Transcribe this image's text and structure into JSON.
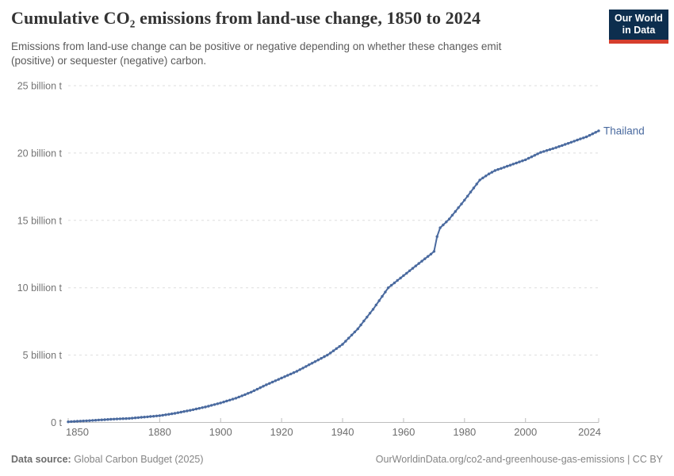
{
  "header": {
    "title": "Cumulative CO₂ emissions from land-use change, 1850 to 2024",
    "subtitle_lines": {
      "0": "Emissions from land-use change can be positive or negative depending on whether these changes emit",
      "1": "(positive) or sequester (negative) carbon."
    },
    "logo": {
      "line1": "Our World",
      "line2": "in Data",
      "bg_color": "#0d2e4e",
      "bar_color": "#d63e2d"
    }
  },
  "footer": {
    "datasource_label": "Data source:",
    "datasource_value": " Global Carbon Budget (2025)",
    "attribution": "OurWorldinData.org/co2-and-greenhouse-gas-emissions | CC BY"
  },
  "chart_data": {
    "type": "line",
    "title": "Cumulative CO₂ emissions from land-use change, 1850 to 2024",
    "xlabel": "",
    "ylabel": "",
    "unit": "billion t",
    "grid": "horizontal-dashed",
    "legend_position": "end-of-line-label",
    "xlim": [
      1850,
      2024
    ],
    "ylim": [
      0,
      25
    ],
    "x_ticks": [
      1850,
      1880,
      1900,
      1920,
      1940,
      1960,
      1980,
      2000,
      2024
    ],
    "y_ticks": [
      {
        "value": 0,
        "label": "0 t"
      },
      {
        "value": 5,
        "label": "5 billion t"
      },
      {
        "value": 10,
        "label": "10 billion t"
      },
      {
        "value": 15,
        "label": "15 billion t"
      },
      {
        "value": 20,
        "label": "20 billion t"
      },
      {
        "value": 25,
        "label": "25 billion t"
      }
    ],
    "marker_interval_years": 1,
    "series": [
      {
        "name": "Thailand",
        "color": "#4a6a9f",
        "points_unit": "billion tonnes CO2",
        "points": [
          [
            1850,
            0.05
          ],
          [
            1855,
            0.11
          ],
          [
            1860,
            0.18
          ],
          [
            1865,
            0.25
          ],
          [
            1870,
            0.3
          ],
          [
            1875,
            0.4
          ],
          [
            1880,
            0.5
          ],
          [
            1885,
            0.68
          ],
          [
            1890,
            0.9
          ],
          [
            1895,
            1.15
          ],
          [
            1900,
            1.45
          ],
          [
            1905,
            1.8
          ],
          [
            1910,
            2.25
          ],
          [
            1915,
            2.8
          ],
          [
            1920,
            3.3
          ],
          [
            1925,
            3.8
          ],
          [
            1930,
            4.4
          ],
          [
            1935,
            5.0
          ],
          [
            1940,
            5.8
          ],
          [
            1945,
            6.95
          ],
          [
            1950,
            8.4
          ],
          [
            1955,
            10.0
          ],
          [
            1960,
            10.9
          ],
          [
            1965,
            11.8
          ],
          [
            1969,
            12.5
          ],
          [
            1970,
            12.7
          ],
          [
            1971,
            13.8
          ],
          [
            1972,
            14.45
          ],
          [
            1975,
            15.1
          ],
          [
            1980,
            16.5
          ],
          [
            1985,
            18.0
          ],
          [
            1988,
            18.45
          ],
          [
            1990,
            18.7
          ],
          [
            1995,
            19.1
          ],
          [
            2000,
            19.5
          ],
          [
            2005,
            20.05
          ],
          [
            2010,
            20.4
          ],
          [
            2015,
            20.8
          ],
          [
            2018,
            21.05
          ],
          [
            2020,
            21.2
          ],
          [
            2024,
            21.65
          ]
        ]
      }
    ]
  }
}
